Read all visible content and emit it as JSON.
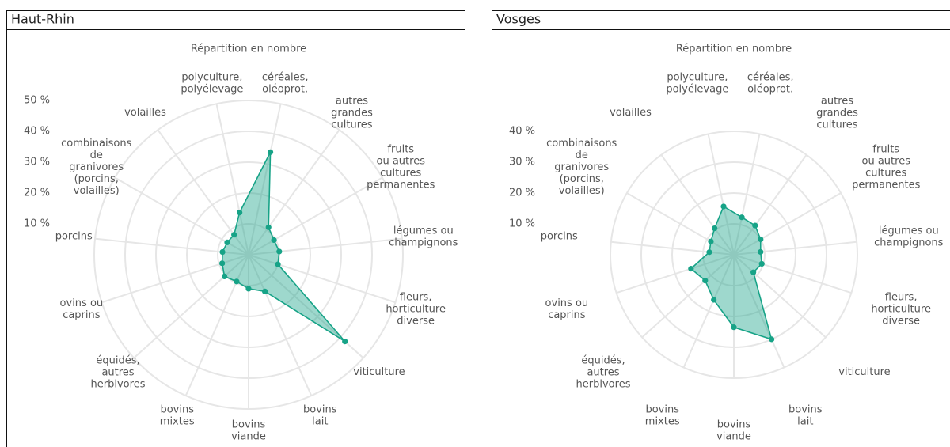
{
  "chart_data": [
    {
      "type": "radar",
      "title": "Haut-Rhin",
      "subtitle": "Répartition en nombre",
      "categories": [
        "céréales,\noléoprot.",
        "autres\ngrandes\ncultures",
        "fruits\nou autres\ncultures\npermanentes",
        "légumes ou\nchampignons",
        "fleurs,\nhorticulture\ndiverse",
        "viticulture",
        "bovins\nlait",
        "bovins\nviande",
        "bovins\nmixtes",
        "équidés,\nautres\nherbivores",
        "ovins ou\ncaprins",
        "porcins",
        "combinaisons\nde\ngranivores\n(porcins,\nvolailles)",
        "volailles",
        "polyculture,\npolyélevage"
      ],
      "values": [
        34,
        11,
        9.5,
        10,
        10,
        42,
        13,
        11,
        9.5,
        10.5,
        9,
        8.5,
        8,
        8,
        14
      ],
      "color": "#17a387",
      "ylim": [
        0,
        50
      ],
      "yticks": [
        {
          "value": 10,
          "label": "10 %"
        },
        {
          "value": 20,
          "label": "20 %"
        },
        {
          "value": 30,
          "label": "30 %"
        },
        {
          "value": 40,
          "label": "40 %"
        },
        {
          "value": 50,
          "label": "50 %"
        }
      ]
    },
    {
      "type": "radar",
      "title": "Vosges",
      "subtitle": "Répartition en nombre",
      "categories": [
        "céréales,\noléoprot.",
        "autres\ngrandes\ncultures",
        "fruits\nou autres\ncultures\npermanentes",
        "légumes ou\nchampignons",
        "fleurs,\nhorticulture\ndiverse",
        "viticulture",
        "bovins\nlait",
        "bovins\nviande",
        "bovins\nmixtes",
        "équidés,\nautres\nherbivores",
        "ovins ou\ncaprins",
        "porcins",
        "combinaisons\nde\ngranivores\n(porcins,\nvolailles)",
        "volailles",
        "polyculture,\npolyélevage"
      ],
      "values": [
        12.4,
        11.7,
        10,
        8.7,
        9.5,
        8.5,
        30,
        23.5,
        16,
        12.5,
        14.6,
        8,
        8.6,
        10.6,
        16
      ],
      "color": "#17a387",
      "ylim": [
        0,
        40
      ],
      "yticks": [
        {
          "value": 10,
          "label": "10 %"
        },
        {
          "value": 20,
          "label": "20 %"
        },
        {
          "value": 30,
          "label": "30 %"
        },
        {
          "value": 40,
          "label": "40 %"
        }
      ]
    }
  ]
}
